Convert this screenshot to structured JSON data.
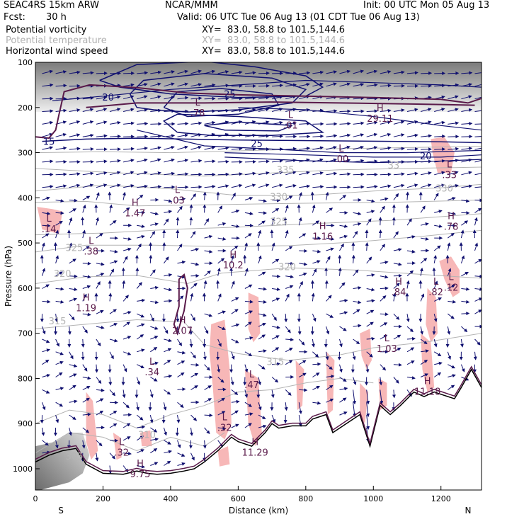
{
  "header": {
    "model": "SEAC4RS 15km ARW",
    "org": "NCAR/MMM",
    "init": "Init: 00 UTC Mon 05 Aug 13",
    "fcst_label": "Fcst:",
    "fcst_value": "30 h",
    "valid": "Valid: 06 UTC Tue 06 Aug 13 (01 CDT Tue 06 Aug 13)",
    "fields": [
      {
        "name": "Potential vorticity",
        "xy": "XY=  83.0, 58.8 to 101.5,144.6",
        "color": "#000000"
      },
      {
        "name": "Potential temperature",
        "xy": "XY=  83.0, 58.8 to 101.5,144.6",
        "color": "#b0b0b0"
      },
      {
        "name": "Horizontal wind speed",
        "xy": "XY=  83.0, 58.8 to 101.5,144.6",
        "color": "#000000"
      }
    ]
  },
  "colors": {
    "pv_contour": "#5a1a4a",
    "theta": "#b4b4b4",
    "wind": "#101070",
    "shade_pink": "#f7b7b7",
    "terrain": "#000000"
  },
  "chart_data": {
    "type": "cross-section",
    "xlabel": "Distance (km)",
    "ylabel": "Pressure (hPa)",
    "x_ticks": [
      0,
      200,
      400,
      600,
      800,
      1000,
      1200
    ],
    "y_ticks": [
      100,
      200,
      300,
      400,
      500,
      600,
      700,
      800,
      900,
      1000
    ],
    "xlim": [
      0,
      1320
    ],
    "ylim": [
      1050,
      100
    ],
    "y_scale": "pressure",
    "corner_labels": {
      "left": "S",
      "right": "N"
    },
    "theta_labels": [
      {
        "text": "335",
        "x": 740,
        "p": 345
      },
      {
        "text": "330",
        "x": 1210,
        "p": 386
      },
      {
        "text": "330",
        "x": 720,
        "p": 405
      },
      {
        "text": "325",
        "x": 720,
        "p": 460
      },
      {
        "text": "325",
        "x": 115,
        "p": 518
      },
      {
        "text": "320",
        "x": 80,
        "p": 575
      },
      {
        "text": "320",
        "x": 745,
        "p": 560
      },
      {
        "text": "315",
        "x": 65,
        "p": 680
      },
      {
        "text": "315",
        "x": 710,
        "p": 770
      },
      {
        "text": "310",
        "x": 330,
        "p": 932
      },
      {
        "text": "305",
        "x": 115,
        "p": 980
      },
      {
        "text": "33",
        "x": 1060,
        "p": 335
      }
    ],
    "wind_labels": [
      {
        "text": "20",
        "x": 215,
        "p": 185
      },
      {
        "text": "25",
        "x": 575,
        "p": 178
      },
      {
        "text": "25",
        "x": 655,
        "p": 287
      },
      {
        "text": "20",
        "x": 1155,
        "p": 315
      },
      {
        "text": "15",
        "x": 40,
        "p": 283
      }
    ],
    "extrema": [
      {
        "type": "L",
        "value": ".78",
        "x": 480,
        "p": 208
      },
      {
        "type": "L",
        "value": ".01",
        "x": 755,
        "p": 236
      },
      {
        "type": "H",
        "value": "29.11",
        "x": 1020,
        "p": 221
      },
      {
        "type": "L",
        "value": ".00",
        "x": 905,
        "p": 310
      },
      {
        "type": "L",
        "value": ".33",
        "x": 1225,
        "p": 345
      },
      {
        "type": "L",
        "value": ".03",
        "x": 420,
        "p": 402
      },
      {
        "type": "H",
        "value": "1.47",
        "x": 295,
        "p": 430
      },
      {
        "type": "L",
        "value": ".14",
        "x": 40,
        "p": 465
      },
      {
        "type": "H",
        "value": "1.16",
        "x": 850,
        "p": 482
      },
      {
        "type": "H",
        "value": ".78",
        "x": 1230,
        "p": 460
      },
      {
        "type": "L",
        "value": ".38",
        "x": 165,
        "p": 515
      },
      {
        "type": "H",
        "value": "10.2",
        "x": 585,
        "p": 545
      },
      {
        "type": "L",
        "value": ".12",
        "x": 1230,
        "p": 595
      },
      {
        "type": "L",
        "value": ".82",
        "x": 1185,
        "p": 605
      },
      {
        "type": "H",
        "value": ".84",
        "x": 1075,
        "p": 605
      },
      {
        "type": "H",
        "value": "1.19",
        "x": 150,
        "p": 640
      },
      {
        "type": "H",
        "value": "2.07",
        "x": 435,
        "p": 690
      },
      {
        "type": "L",
        "value": "1.03",
        "x": 1040,
        "p": 730
      },
      {
        "type": "L",
        "value": ".34",
        "x": 345,
        "p": 782
      },
      {
        "type": "L",
        "value": ".47",
        "x": 640,
        "p": 810
      },
      {
        "type": "H",
        "value": "11.18",
        "x": 1160,
        "p": 825
      },
      {
        "type": "L",
        "value": ".32",
        "x": 560,
        "p": 905
      },
      {
        "type": "L",
        "value": ".32",
        "x": 255,
        "p": 960
      },
      {
        "type": "H",
        "value": "11.29",
        "x": 650,
        "p": 960
      },
      {
        "type": "H",
        "value": "9.75",
        "x": 310,
        "p": 1008
      }
    ]
  }
}
